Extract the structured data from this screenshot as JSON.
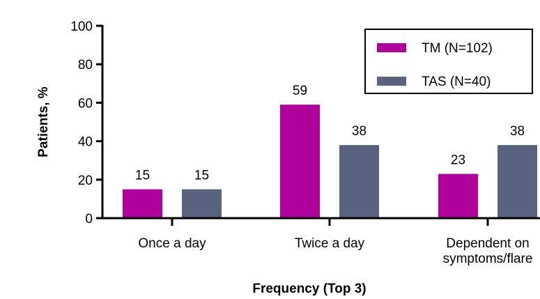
{
  "chart_data": {
    "type": "bar",
    "categories": [
      [
        "Once a day"
      ],
      [
        "Twice a day"
      ],
      [
        "Dependent on",
        "symptoms/flare"
      ]
    ],
    "series": [
      {
        "name": "TM (N=102)",
        "values": [
          15,
          59,
          23
        ],
        "color": "#b0009b"
      },
      {
        "name": "TAS (N=40)",
        "values": [
          15,
          38,
          38
        ],
        "color": "#58647f"
      }
    ],
    "xlabel": "Frequency (Top 3)",
    "ylabel": "Patients, %",
    "ylim": [
      0,
      100
    ],
    "yticks": [
      0,
      20,
      40,
      60,
      80,
      100
    ],
    "legend_position": "top-right",
    "grid": false
  }
}
